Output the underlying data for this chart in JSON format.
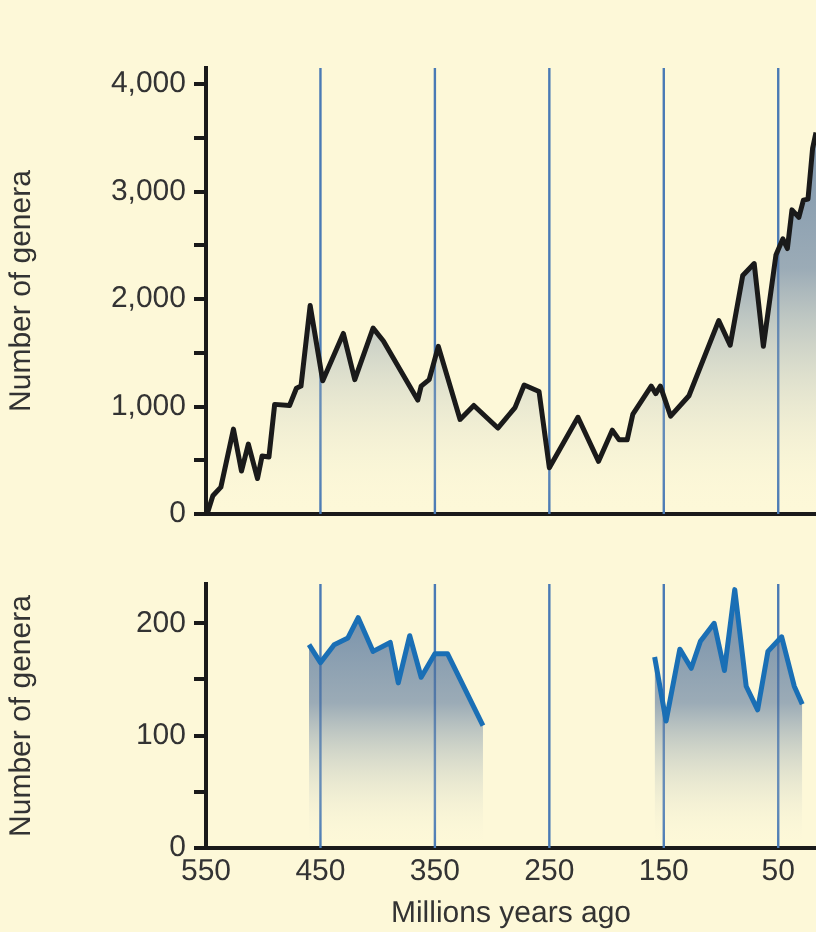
{
  "chart_data": [
    {
      "type": "area",
      "ylabel": "Number of genera",
      "xlim": [
        550,
        17
      ],
      "ylim": [
        0,
        4150
      ],
      "xticks": [
        550,
        450,
        350,
        250,
        150,
        50
      ],
      "yticks": [
        {
          "value": 0,
          "label": "0"
        },
        {
          "value": 500,
          "label": null
        },
        {
          "value": 1000,
          "label": "1,000"
        },
        {
          "value": 1500,
          "label": null
        },
        {
          "value": 2000,
          "label": "2,000"
        },
        {
          "value": 2500,
          "label": null
        },
        {
          "value": 3000,
          "label": "3,000"
        },
        {
          "value": 3500,
          "label": null
        },
        {
          "value": 4000,
          "label": "4,000"
        }
      ],
      "tick_labels": "y",
      "grid": false,
      "legend": false,
      "series": [
        {
          "color": "#1a1a1a",
          "x": [
            549,
            544,
            537,
            526,
            519,
            513,
            505,
            501,
            495,
            490,
            477,
            471,
            467,
            459,
            448,
            430,
            420,
            404,
            395,
            365,
            362,
            355,
            347,
            328,
            316,
            295,
            280,
            272,
            259,
            250,
            225,
            207,
            195,
            189,
            182,
            177,
            161,
            157,
            153,
            144,
            128,
            102,
            92,
            81,
            71,
            63,
            52,
            46,
            42,
            38,
            32,
            28,
            24,
            20,
            17
          ],
          "values": [
            0,
            170,
            250,
            790,
            400,
            650,
            330,
            540,
            530,
            1020,
            1010,
            1170,
            1190,
            1940,
            1240,
            1680,
            1250,
            1730,
            1610,
            1060,
            1190,
            1250,
            1560,
            880,
            1010,
            800,
            990,
            1200,
            1140,
            430,
            900,
            490,
            780,
            690,
            690,
            930,
            1190,
            1120,
            1190,
            910,
            1100,
            1800,
            1570,
            2220,
            2330,
            1560,
            2410,
            2560,
            2470,
            2830,
            2760,
            2920,
            2930,
            3400,
            3550
          ]
        }
      ],
      "ref_lines": [
        {
          "axis": "x",
          "value": 450,
          "color": "#4a7ab5"
        },
        {
          "axis": "x",
          "value": 350,
          "color": "#4a7ab5"
        },
        {
          "axis": "x",
          "value": 250,
          "color": "#4a7ab5"
        },
        {
          "axis": "x",
          "value": 150,
          "color": "#4a7ab5"
        },
        {
          "axis": "x",
          "value": 50,
          "color": "#4a7ab5"
        }
      ]
    },
    {
      "type": "area",
      "ylabel": "Number of genera",
      "xlabel": "Millions years ago",
      "xlim": [
        550,
        17
      ],
      "ylim": [
        0,
        235
      ],
      "xticks": [
        550,
        450,
        350,
        250,
        150,
        50
      ],
      "yticks": [
        0,
        {
          "value": 50,
          "label": null
        },
        100,
        {
          "value": 150,
          "label": null
        },
        200
      ],
      "grid": false,
      "legend": false,
      "series": [
        {
          "color": "#1a6fb5",
          "x": [
            460,
            450,
            438,
            426,
            417,
            404,
            389,
            382,
            372,
            362,
            350,
            339,
            308
          ],
          "values": [
            181,
            165,
            181,
            187,
            205,
            175,
            183,
            147,
            189,
            152,
            173,
            173,
            109
          ]
        },
        {
          "color": "#1a6fb5",
          "x": [
            158,
            148,
            136,
            126,
            118,
            106,
            97,
            88,
            78,
            68,
            59,
            47,
            36,
            29
          ],
          "values": [
            170,
            113,
            177,
            160,
            184,
            200,
            158,
            230,
            144,
            123,
            175,
            188,
            144,
            128
          ]
        }
      ],
      "ref_lines": [
        {
          "axis": "x",
          "value": 450,
          "color": "#4a7ab5"
        },
        {
          "axis": "x",
          "value": 350,
          "color": "#4a7ab5"
        },
        {
          "axis": "x",
          "value": 250,
          "color": "#4a7ab5"
        },
        {
          "axis": "x",
          "value": 150,
          "color": "#4a7ab5"
        },
        {
          "axis": "x",
          "value": 50,
          "color": "#4a7ab5"
        }
      ]
    }
  ]
}
